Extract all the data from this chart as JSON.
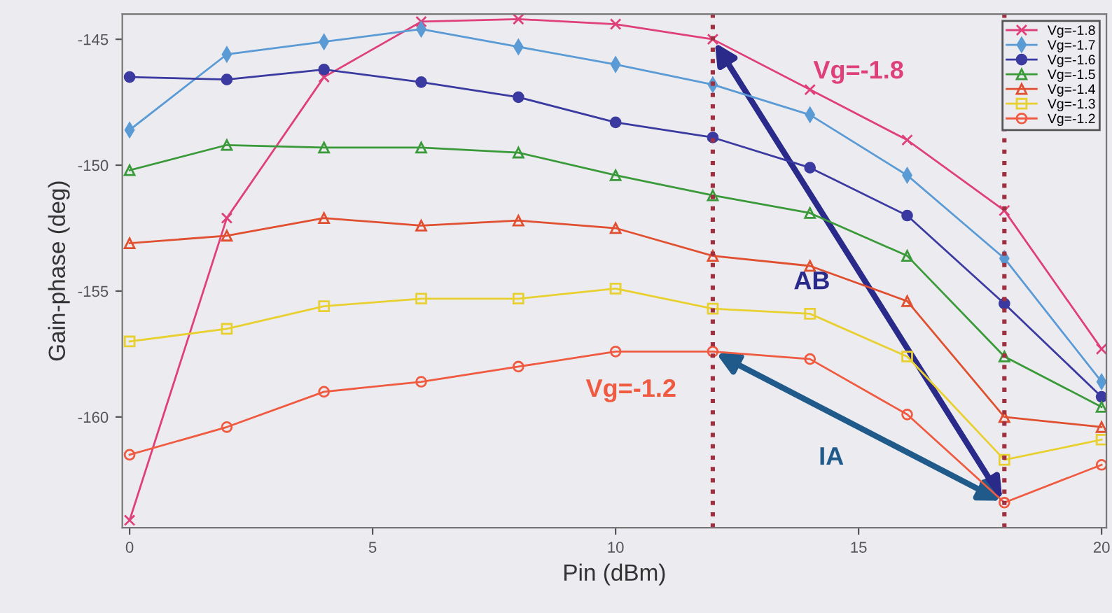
{
  "chart_data": {
    "type": "line",
    "xlabel": "Pin (dBm)",
    "ylabel": "Gain-phase (deg)",
    "x": [
      0,
      2,
      4,
      6,
      8,
      10,
      12,
      14,
      16,
      18,
      20
    ],
    "series": [
      {
        "name": "Vg=-1.8",
        "color": "#e0407a",
        "marker": "cross",
        "values": [
          -164.1,
          -152.1,
          -146.5,
          -144.3,
          -144.2,
          -144.4,
          -145.0,
          -147.0,
          -149.0,
          -151.8,
          -157.3
        ]
      },
      {
        "name": "Vg=-1.7",
        "color": "#5b9bd5",
        "marker": "diamond",
        "values": [
          -148.6,
          -145.6,
          -145.1,
          -144.6,
          -145.3,
          -146.0,
          -146.8,
          -148.0,
          -150.4,
          -153.7,
          -158.6
        ]
      },
      {
        "name": "Vg=-1.6",
        "color": "#3a3aa0",
        "marker": "circle",
        "values": [
          -146.5,
          -146.6,
          -146.2,
          -146.7,
          -147.3,
          -148.3,
          -148.9,
          -150.1,
          -152.0,
          -155.5,
          -159.2
        ]
      },
      {
        "name": "Vg=-1.5",
        "color": "#3a9a3a",
        "marker": "triangle",
        "values": [
          -150.2,
          -149.2,
          -149.3,
          -149.3,
          -149.5,
          -150.4,
          -151.2,
          -151.9,
          -153.6,
          -157.6,
          -159.6
        ]
      },
      {
        "name": "Vg=-1.4",
        "color": "#e05030",
        "marker": "triangle",
        "values": [
          -153.1,
          -152.8,
          -152.1,
          -152.4,
          -152.2,
          -152.5,
          -153.6,
          -154.0,
          -155.4,
          -160.0,
          -160.4
        ]
      },
      {
        "name": "Vg=-1.3",
        "color": "#e8d030",
        "marker": "square",
        "values": [
          -157.0,
          -156.5,
          -155.6,
          -155.3,
          -155.3,
          -154.9,
          -155.7,
          -155.9,
          -157.6,
          -161.7,
          -160.9
        ]
      },
      {
        "name": "Vg=-1.2",
        "color": "#f05a40",
        "marker": "circle",
        "values": [
          -161.5,
          -160.4,
          -159.0,
          -158.6,
          -158.0,
          -157.4,
          -157.4,
          -157.7,
          -159.9,
          -163.4,
          -161.9
        ]
      }
    ],
    "xlim": [
      -0.15,
      20.1
    ],
    "ylim": [
      -164.4,
      -144.0
    ],
    "xticks": [
      0,
      5,
      10,
      15,
      20
    ],
    "yticks": [
      -145,
      -150,
      -155,
      -160
    ],
    "ref_lines": [
      {
        "axis": "x",
        "value": 12,
        "color": "#a03040",
        "line_style": "dotted"
      },
      {
        "axis": "x",
        "value": 18,
        "color": "#a03040",
        "line_style": "dotted"
      }
    ],
    "annotations": [
      "Vg=-1.8",
      "Vg=-1.2",
      "AB",
      "IA"
    ],
    "legend": "top right",
    "grid": false
  }
}
